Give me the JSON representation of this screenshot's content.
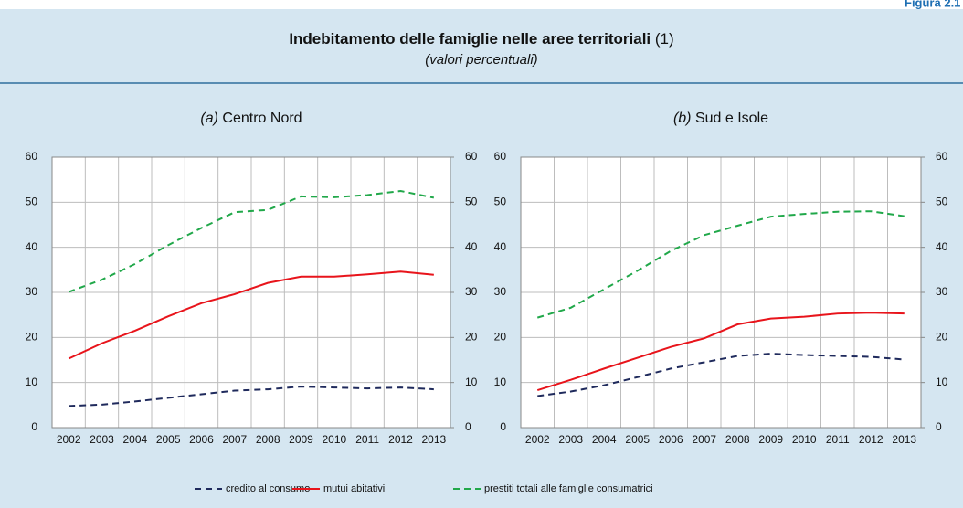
{
  "header": {
    "figure_label": "Figura 2.1",
    "title": "Indebitamento delle famiglie nelle aree territoriali",
    "note_ref": "(1)",
    "subtitle": "(valori percentuali)"
  },
  "chart_data": [
    {
      "type": "line",
      "label": "(a)",
      "title": "Centro Nord",
      "categories": [
        "2002",
        "2003",
        "2004",
        "2005",
        "2006",
        "2007",
        "2008",
        "2009",
        "2010",
        "2011",
        "2012",
        "2013"
      ],
      "ylim": [
        0,
        60
      ],
      "yticks": [
        0,
        10,
        20,
        30,
        40,
        50,
        60
      ],
      "y2lim": [
        0,
        60
      ],
      "y2ticks": [
        0,
        10,
        20,
        30,
        40,
        50,
        60
      ],
      "grid": true,
      "series": [
        {
          "name": "credito al consumo",
          "color": "#1f2a5c",
          "style": "dashed",
          "values": [
            4.8,
            5.1,
            5.8,
            6.6,
            7.4,
            8.2,
            8.5,
            9.1,
            8.9,
            8.7,
            8.9,
            8.5
          ]
        },
        {
          "name": "mutui abitativi",
          "color": "#e8141b",
          "style": "solid",
          "values": [
            15.3,
            18.7,
            21.5,
            24.7,
            27.6,
            29.6,
            32.1,
            33.5,
            33.5,
            34.0,
            34.6,
            33.9
          ]
        },
        {
          "name": "prestiti totali alle famiglie consumatrici",
          "color": "#21a84a",
          "style": "dashed",
          "values": [
            30.1,
            32.8,
            36.3,
            40.5,
            44.3,
            47.8,
            48.3,
            51.3,
            51.1,
            51.6,
            52.5,
            51.0
          ]
        }
      ]
    },
    {
      "type": "line",
      "label": "(b)",
      "title": "Sud e Isole",
      "categories": [
        "2002",
        "2003",
        "2004",
        "2005",
        "2006",
        "2007",
        "2008",
        "2009",
        "2010",
        "2011",
        "2012",
        "2013"
      ],
      "ylim": [
        0,
        60
      ],
      "yticks": [
        0,
        10,
        20,
        30,
        40,
        50,
        60
      ],
      "y2lim": [
        0,
        60
      ],
      "y2ticks": [
        0,
        10,
        20,
        30,
        40,
        50,
        60
      ],
      "grid": true,
      "series": [
        {
          "name": "credito al consumo",
          "color": "#1f2a5c",
          "style": "dashed",
          "values": [
            7.0,
            8.0,
            9.4,
            11.2,
            13.1,
            14.5,
            15.9,
            16.4,
            16.1,
            15.9,
            15.7,
            15.1
          ]
        },
        {
          "name": "mutui abitativi",
          "color": "#e8141b",
          "style": "solid",
          "values": [
            8.3,
            10.6,
            13.1,
            15.5,
            17.9,
            19.8,
            22.9,
            24.2,
            24.6,
            25.3,
            25.5,
            25.3
          ]
        },
        {
          "name": "prestiti totali alle famiglie consumatrici",
          "color": "#21a84a",
          "style": "dashed",
          "values": [
            24.4,
            26.6,
            30.7,
            34.8,
            39.2,
            42.7,
            44.8,
            46.8,
            47.4,
            47.9,
            48.0,
            46.9
          ]
        }
      ]
    }
  ]
}
